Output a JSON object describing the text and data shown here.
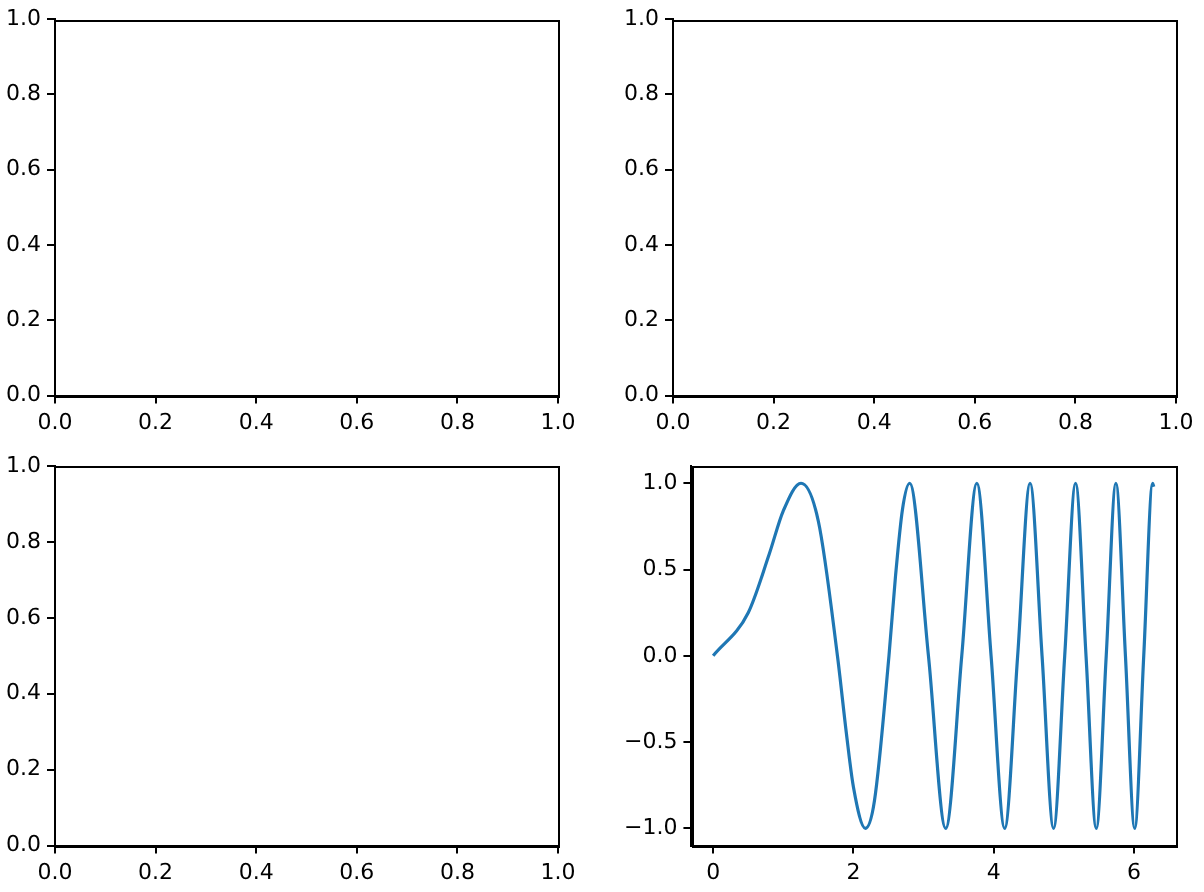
{
  "chart_data": [
    {
      "type": "line",
      "xlim": [
        0,
        1
      ],
      "ylim": [
        0,
        1
      ],
      "xticks": [
        {
          "value": 0,
          "label": "0.0"
        },
        {
          "value": 0.2,
          "label": "0.2"
        },
        {
          "value": 0.4,
          "label": "0.4"
        },
        {
          "value": 0.6,
          "label": "0.6"
        },
        {
          "value": 0.8,
          "label": "0.8"
        },
        {
          "value": 1,
          "label": "1.0"
        }
      ],
      "yticks": [
        {
          "value": 0,
          "label": "0.0"
        },
        {
          "value": 0.2,
          "label": "0.2"
        },
        {
          "value": 0.4,
          "label": "0.4"
        },
        {
          "value": 0.6,
          "label": "0.6"
        },
        {
          "value": 0.8,
          "label": "0.8"
        },
        {
          "value": 1,
          "label": "1.0"
        }
      ],
      "grid": false,
      "legend": false
    },
    {
      "type": "line",
      "xlim": [
        0,
        1
      ],
      "ylim": [
        0,
        1
      ],
      "xticks": [
        {
          "value": 0,
          "label": "0.0"
        },
        {
          "value": 0.2,
          "label": "0.2"
        },
        {
          "value": 0.4,
          "label": "0.4"
        },
        {
          "value": 0.6,
          "label": "0.6"
        },
        {
          "value": 0.8,
          "label": "0.8"
        },
        {
          "value": 1,
          "label": "1.0"
        }
      ],
      "yticks": [
        {
          "value": 0,
          "label": "0.0"
        },
        {
          "value": 0.2,
          "label": "0.2"
        },
        {
          "value": 0.4,
          "label": "0.4"
        },
        {
          "value": 0.6,
          "label": "0.6"
        },
        {
          "value": 0.8,
          "label": "0.8"
        },
        {
          "value": 1,
          "label": "1.0"
        }
      ],
      "grid": false,
      "legend": false
    },
    {
      "type": "line",
      "xlim": [
        0,
        1
      ],
      "ylim": [
        0,
        1
      ],
      "xticks": [
        {
          "value": 0,
          "label": "0.0"
        },
        {
          "value": 0.2,
          "label": "0.2"
        },
        {
          "value": 0.4,
          "label": "0.4"
        },
        {
          "value": 0.6,
          "label": "0.6"
        },
        {
          "value": 0.8,
          "label": "0.8"
        },
        {
          "value": 1,
          "label": "1.0"
        }
      ],
      "yticks": [
        {
          "value": 0,
          "label": "0.0"
        },
        {
          "value": 0.2,
          "label": "0.2"
        },
        {
          "value": 0.4,
          "label": "0.4"
        },
        {
          "value": 0.6,
          "label": "0.6"
        },
        {
          "value": 0.8,
          "label": "0.8"
        },
        {
          "value": 1,
          "label": "1.0"
        }
      ],
      "grid": false,
      "legend": false
    },
    {
      "type": "line",
      "xlim": [
        -0.31,
        6.6
      ],
      "ylim": [
        -1.1,
        1.1
      ],
      "xticks": [
        0,
        2,
        4,
        6
      ],
      "yticks": [
        {
          "value": -1,
          "label": "−1.0"
        },
        {
          "value": -0.5,
          "label": "−0.5"
        },
        {
          "value": 0,
          "label": "0.0"
        },
        {
          "value": 0.5,
          "label": "0.5"
        },
        {
          "value": 1,
          "label": "1.0"
        }
      ],
      "grid": false,
      "legend": false,
      "marker": "none",
      "line_style": "solid",
      "x": [
        0,
        0.5,
        0.8,
        1.0,
        1.253,
        1.5,
        1.772,
        1.9,
        2.0,
        2.171,
        2.3,
        2.507,
        2.6,
        2.7,
        2.802,
        3.07,
        3.316,
        3.545,
        3.76,
        3.963,
        4.157,
        4.342,
        4.519,
        4.69,
        4.854,
        5.013,
        5.168,
        5.317,
        5.463,
        5.605,
        5.743,
        5.879,
        6.011,
        6.14,
        6.267,
        6.283
      ],
      "series": [
        {
          "color": "#1f77b4",
          "values": [
            0,
            0.25,
            0.59,
            0.84,
            1,
            0.78,
            0,
            -0.45,
            -0.76,
            -1,
            -0.84,
            0,
            0.46,
            0.85,
            1,
            0,
            -1,
            0,
            1,
            0,
            -1,
            0,
            1,
            0,
            -1,
            0,
            1,
            0,
            -1,
            0,
            1,
            0,
            -1,
            0,
            1,
            0.98
          ]
        }
      ]
    }
  ]
}
